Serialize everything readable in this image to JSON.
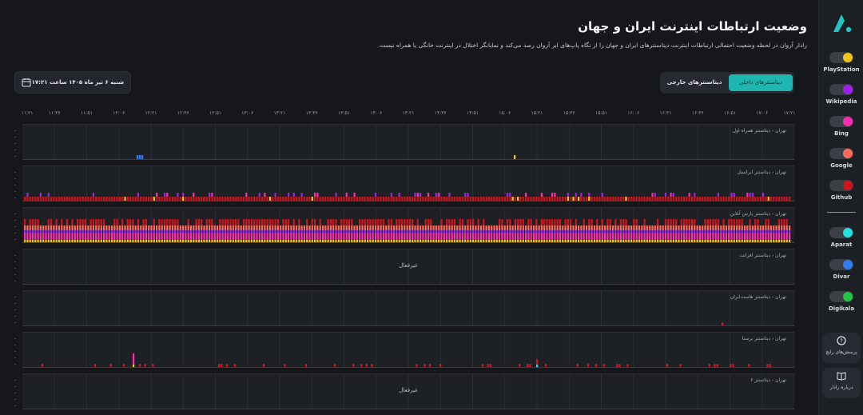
{
  "header": {
    "title": "وضعیت ارتباطات اینترنت ایران و جهان",
    "subtitle": "رادار آروان در لحظه وضعیت احتمالی ارتباطات اینترنت دیتاسنترهای ایران و جهان را از نگاه پاپ‌های ابر آروان رصد می‌کند و نمایانگر اختلال در اینترنت خانگی یا همراه نیست."
  },
  "date_selector": {
    "label": "شنبه ۶ تیر ماه ۱۴۰۵ ساعت ۱۷:۲۱",
    "icon": "calendar-icon"
  },
  "tabs": [
    {
      "label": "دیتاسنترهای داخلی",
      "active": true
    },
    {
      "label": "دیتاسنترهای خارجی",
      "active": false
    }
  ],
  "time_axis": [
    "۱۷:۲۱",
    "۱۷:۰۶",
    "۱۶:۵۱",
    "۱۶:۳۶",
    "۱۶:۲۱",
    "۱۶:۰۶",
    "۱۵:۵۱",
    "۱۵:۳۶",
    "۱۵:۲۱",
    "۱۵:۰۶",
    "۱۴:۵۱",
    "۱۴:۳۶",
    "۱۴:۲۱",
    "۱۴:۰۶",
    "۱۳:۵۱",
    "۱۳:۳۶",
    "۱۳:۲۱",
    "۱۳:۰۶",
    "۱۲:۵۱",
    "۱۲:۳۶",
    "۱۲:۲۱",
    "۱۲:۰۶",
    "۱۱:۵۱",
    "۱۱:۳۶",
    "۱۱:۲۱"
  ],
  "panels": [
    {
      "label": "تهران - دیتاسنتر همراه اول",
      "status": "active",
      "pattern": "sparse-top"
    },
    {
      "label": "تهران - دیتاسنتر ایرانسل",
      "status": "active",
      "pattern": "dense-low"
    },
    {
      "label": "تهران - دیتاسنتر پارس آنلاین",
      "status": "active",
      "pattern": "dense-full"
    },
    {
      "label": "تهران - دیتاسنتر افرانت",
      "status": "inactive",
      "inactive_text": "غیرفعال"
    },
    {
      "label": "تهران - دیتاسنتر هاست‌ایران",
      "status": "active",
      "pattern": "single"
    },
    {
      "label": "تهران - دیتاسنتر برسنا",
      "status": "active",
      "pattern": "sparse-low"
    },
    {
      "label": "تهران - دیتاسنتر ۶",
      "status": "inactive",
      "inactive_text": "غیرفعال"
    }
  ],
  "legend": {
    "services_global": [
      {
        "name": "PlayStation",
        "color": "#f5c518"
      },
      {
        "name": "Wikipedia",
        "color": "#a020f0"
      },
      {
        "name": "Bing",
        "color": "#ff2bb0"
      },
      {
        "name": "Google",
        "color": "#ff6a5c"
      },
      {
        "name": "Github",
        "color": "#d0141c"
      }
    ],
    "services_local": [
      {
        "name": "Aparat",
        "color": "#22e0e0"
      },
      {
        "name": "Divar",
        "color": "#2f7df0"
      },
      {
        "name": "Digikala",
        "color": "#22c542"
      }
    ]
  },
  "side_buttons": [
    {
      "label": "پرسش‌های رایج",
      "icon": "question-icon"
    },
    {
      "label": "درباره رادار",
      "icon": "book-icon"
    }
  ],
  "colors": {
    "accent": "#1fb5b0",
    "logo": "#22c7c2"
  }
}
